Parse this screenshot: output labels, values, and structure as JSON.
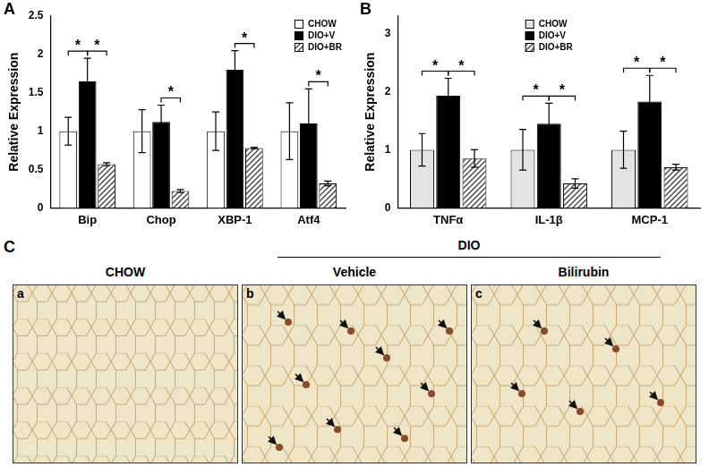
{
  "chart_data": [
    {
      "panel": "A",
      "type": "bar",
      "y_label": "Relative Expression",
      "categories": [
        "Bip",
        "Chop",
        "XBP-1",
        "Atf4"
      ],
      "series": [
        {
          "name": "CHOW",
          "color": "#ffffff",
          "values": [
            1.0,
            1.0,
            1.0,
            1.0
          ],
          "errors": [
            0.18,
            0.28,
            0.25,
            0.37
          ]
        },
        {
          "name": "DIO+V",
          "color": "#000000",
          "values": [
            1.65,
            1.12,
            1.8,
            1.1
          ],
          "errors": [
            0.3,
            0.22,
            0.25,
            0.45
          ]
        },
        {
          "name": "DIO+BR",
          "color": "#444444",
          "line_style": "hatched",
          "values": [
            0.57,
            0.22,
            0.78,
            0.32
          ],
          "errors": [
            0.02,
            0.02,
            0.01,
            0.03
          ]
        }
      ],
      "significance": [
        {
          "category": "Bip",
          "from": "CHOW",
          "to": "DIO+V",
          "text": "*"
        },
        {
          "category": "Bip",
          "from": "DIO+V",
          "to": "DIO+BR",
          "text": "*"
        },
        {
          "category": "Chop",
          "from": "DIO+V",
          "to": "DIO+BR",
          "text": "*"
        },
        {
          "category": "XBP-1",
          "from": "DIO+V",
          "to": "DIO+BR",
          "text": "*"
        },
        {
          "category": "Atf4",
          "from": "DIO+V",
          "to": "DIO+BR",
          "text": "*"
        }
      ],
      "ylim": [
        0,
        2.5
      ],
      "yticks": [
        0,
        0.5,
        1,
        1.5,
        2,
        2.5
      ],
      "grid": false,
      "legend": "upper right"
    },
    {
      "panel": "B",
      "type": "bar",
      "y_label": "Relative Expression",
      "categories": [
        "TNFα",
        "IL-1β",
        "MCP-1"
      ],
      "series": [
        {
          "name": "CHOW",
          "color": "#e3e3e3",
          "values": [
            1.0,
            1.0,
            1.0
          ],
          "errors": [
            0.28,
            0.35,
            0.32
          ]
        },
        {
          "name": "DIO+V",
          "color": "#000000",
          "values": [
            1.93,
            1.45,
            1.83
          ],
          "errors": [
            0.3,
            0.35,
            0.45
          ]
        },
        {
          "name": "DIO+BR",
          "color": "#444444",
          "line_style": "hatched",
          "values": [
            0.85,
            0.42,
            0.7
          ],
          "errors": [
            0.15,
            0.08,
            0.05
          ]
        }
      ],
      "significance": [
        {
          "category": "TNFα",
          "from": "CHOW",
          "to": "DIO+V",
          "text": "*"
        },
        {
          "category": "TNFα",
          "from": "DIO+V",
          "to": "DIO+BR",
          "text": "*"
        },
        {
          "category": "IL-1β",
          "from": "CHOW",
          "to": "DIO+V",
          "text": "*"
        },
        {
          "category": "IL-1β",
          "from": "DIO+V",
          "to": "DIO+BR",
          "text": "*"
        },
        {
          "category": "MCP-1",
          "from": "CHOW",
          "to": "DIO+V",
          "text": "*"
        },
        {
          "category": "MCP-1",
          "from": "DIO+V",
          "to": "DIO+BR",
          "text": "*"
        }
      ],
      "ylim": [
        0,
        3.3
      ],
      "yticks": [
        0,
        1,
        2,
        3
      ],
      "grid": false,
      "legend": "upper center"
    }
  ],
  "images": {
    "panel": "C",
    "group_label": "DIO",
    "columns": [
      {
        "title": "CHOW",
        "tag": "a"
      },
      {
        "title": "Vehicle",
        "tag": "b"
      },
      {
        "title": "Bilirubin",
        "tag": "c"
      }
    ]
  }
}
